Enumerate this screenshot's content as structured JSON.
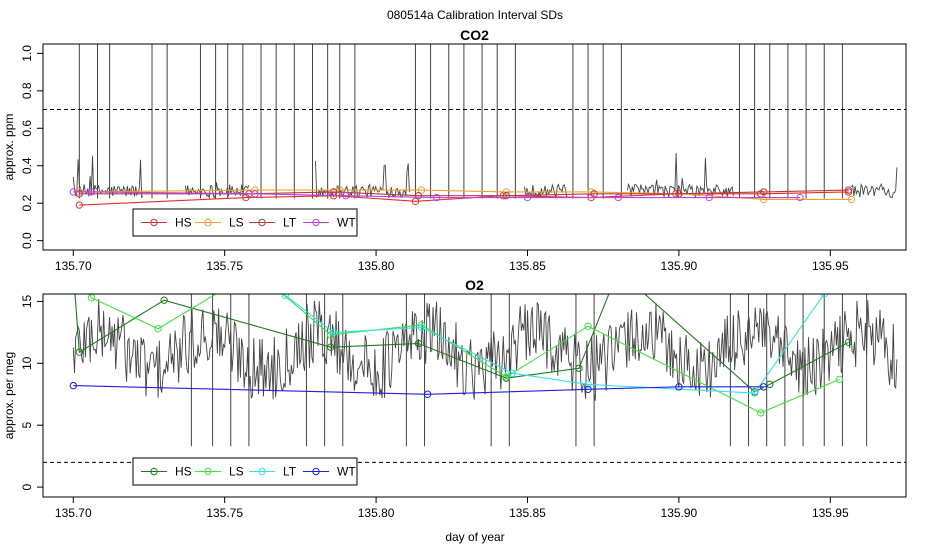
{
  "title": "080514a   Calibration Interval SDs",
  "xlabel": "day of year",
  "chart_data": [
    {
      "type": "line",
      "title": "CO2",
      "ylabel": "approx. ppm",
      "xlim": [
        135.69,
        135.975
      ],
      "ylim": [
        -0.05,
        1.05
      ],
      "xticks": [
        "135.70",
        "135.75",
        "135.80",
        "135.85",
        "135.90",
        "135.95"
      ],
      "yticks": [
        "0.0",
        "0.2",
        "0.4",
        "0.6",
        "0.8",
        "1.0"
      ],
      "threshold": 0.7,
      "raw_color": "#444444",
      "spike_days": [
        135.702,
        135.708,
        135.712,
        135.726,
        135.731,
        135.742,
        135.747,
        135.751,
        135.756,
        135.762,
        135.767,
        135.773,
        135.779,
        135.784,
        135.788,
        135.793,
        135.813,
        135.818,
        135.824,
        135.829,
        135.835,
        135.84,
        135.846,
        135.865,
        135.87,
        135.875,
        135.881,
        135.92,
        135.925,
        135.93,
        135.936,
        135.942,
        135.948,
        135.954
      ],
      "raw_segments": [
        [
          135.7,
          135.723
        ],
        [
          135.737,
          135.758
        ],
        [
          135.78,
          135.811
        ],
        [
          135.849,
          135.863
        ],
        [
          135.883,
          135.918
        ],
        [
          135.957,
          135.972
        ]
      ],
      "legend": [
        "HS",
        "LS",
        "LT",
        "WT"
      ],
      "series": [
        {
          "name": "HS",
          "color": "#e03030",
          "x": [
            135.702,
            135.757,
            135.786,
            135.813,
            135.842,
            135.871,
            135.899,
            135.927,
            135.956
          ],
          "y": [
            0.19,
            0.23,
            0.24,
            0.21,
            0.24,
            0.23,
            0.25,
            0.25,
            0.26
          ]
        },
        {
          "name": "LS",
          "color": "#f0a030",
          "x": [
            135.702,
            135.76,
            135.788,
            135.815,
            135.843,
            135.871,
            135.9,
            135.928,
            135.957
          ],
          "y": [
            0.26,
            0.27,
            0.27,
            0.27,
            0.26,
            0.26,
            0.25,
            0.22,
            0.22
          ]
        },
        {
          "name": "LT",
          "color": "#b04040",
          "x": [
            135.702,
            135.758,
            135.786,
            135.814,
            135.843,
            135.872,
            135.9,
            135.928,
            135.956
          ],
          "y": [
            0.25,
            0.25,
            0.26,
            0.24,
            0.24,
            0.25,
            0.25,
            0.26,
            0.27
          ]
        },
        {
          "name": "WT",
          "color": "#c040e0",
          "x": [
            135.7,
            135.706,
            135.76,
            135.79,
            135.82,
            135.85,
            135.88,
            135.91,
            135.94
          ],
          "y": [
            0.26,
            0.26,
            0.25,
            0.24,
            0.23,
            0.23,
            0.23,
            0.23,
            0.23
          ]
        }
      ]
    },
    {
      "type": "line",
      "title": "O2",
      "ylabel": "approx. per meg",
      "xlim": [
        135.69,
        135.975
      ],
      "ylim": [
        -0.8,
        15.6
      ],
      "xticks": [
        "135.70",
        "135.75",
        "135.80",
        "135.85",
        "135.90",
        "135.95"
      ],
      "yticks": [
        "0",
        "5",
        "10",
        "15"
      ],
      "threshold": 2,
      "raw_color": "#444444",
      "spike_days": [
        135.739,
        135.746,
        135.752,
        135.758,
        135.777,
        135.783,
        135.789,
        135.81,
        135.816,
        135.838,
        135.844,
        135.866,
        135.872,
        135.917,
        135.923,
        135.929,
        135.935,
        135.941,
        135.948,
        135.954,
        135.962
      ],
      "raw_segments": [
        [
          135.7,
          135.972
        ]
      ],
      "legend": [
        "HS",
        "LS",
        "LT",
        "WT"
      ],
      "series": [
        {
          "name": "HS",
          "color": "#1e7a1e",
          "x": [
            135.7,
            135.702,
            135.73,
            135.785,
            135.814,
            135.843,
            135.867,
            135.88,
            135.925,
            135.93,
            135.956
          ],
          "y": [
            17.5,
            10.9,
            15.1,
            11.3,
            11.6,
            8.8,
            9.6,
            17.5,
            7.7,
            8.3,
            11.7
          ]
        },
        {
          "name": "LS",
          "color": "#44dd44",
          "x": [
            135.7,
            135.706,
            135.728,
            135.76,
            135.785,
            135.815,
            135.843,
            135.87,
            135.927,
            135.953
          ],
          "y": [
            17.5,
            15.3,
            12.8,
            17.5,
            12.3,
            13.1,
            8.9,
            13.0,
            6.0,
            8.7
          ]
        },
        {
          "name": "LT",
          "color": "#33e0e8",
          "x": [
            135.77,
            135.786,
            135.815,
            135.845,
            135.87,
            135.925,
            135.948
          ],
          "y": [
            15.5,
            12.5,
            12.9,
            9.2,
            8.3,
            7.6,
            15.6
          ]
        },
        {
          "name": "WT",
          "color": "#2020dd",
          "x": [
            135.7,
            135.817,
            135.87,
            135.9,
            135.928
          ],
          "y": [
            8.2,
            7.5,
            7.9,
            8.1,
            8.1
          ]
        }
      ]
    }
  ]
}
